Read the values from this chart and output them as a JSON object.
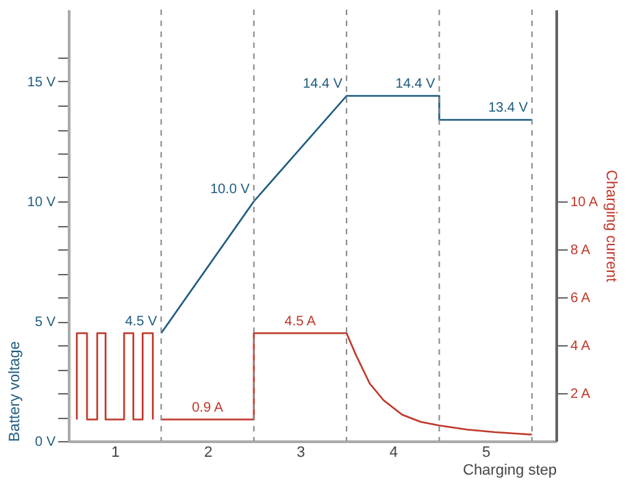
{
  "chart_data": {
    "type": "line",
    "xlabel": "Charging step",
    "ylabel": "Battery voltage",
    "y2label": "Charging current",
    "xlim": [
      0.5,
      5.76
    ],
    "xticks": [
      1,
      2,
      3,
      4,
      5
    ],
    "ylim": [
      0,
      18
    ],
    "yticks": [
      {
        "value": 0,
        "label": "0 V"
      },
      {
        "value": 1,
        "label": null
      },
      {
        "value": 2,
        "label": null
      },
      {
        "value": 3,
        "label": null
      },
      {
        "value": 4,
        "label": null
      },
      {
        "value": 5,
        "label": "5 V"
      },
      {
        "value": 6,
        "label": null
      },
      {
        "value": 7,
        "label": null
      },
      {
        "value": 8,
        "label": null
      },
      {
        "value": 9,
        "label": null
      },
      {
        "value": 10,
        "label": "10 V"
      },
      {
        "value": 11,
        "label": null
      },
      {
        "value": 12,
        "label": null
      },
      {
        "value": 13,
        "label": null
      },
      {
        "value": 14,
        "label": null
      },
      {
        "value": 15,
        "label": "15 V"
      },
      {
        "value": 16,
        "label": null
      }
    ],
    "y2lim": [
      0,
      18
    ],
    "y2ticks": [
      {
        "value": 2,
        "label": "2 A"
      },
      {
        "value": 4,
        "label": "4 A"
      },
      {
        "value": 6,
        "label": "6 A"
      },
      {
        "value": 8,
        "label": "8 A"
      },
      {
        "value": 10,
        "label": "10 A"
      }
    ],
    "grid": false,
    "series": [
      {
        "color": "#1f5c80",
        "x": [
          1.5,
          2.5,
          3.5,
          4.5,
          4.5,
          5.5
        ],
        "values": [
          4.5,
          10.0,
          14.4,
          14.4,
          13.4,
          13.4
        ],
        "value_labels": [
          "4.5 V",
          "10.0 V",
          "14.4 V",
          "14.4 V",
          null,
          "13.4 V"
        ]
      },
      {
        "color": "#c0392b",
        "axis": "y2",
        "x": [
          0.59,
          0.59,
          0.7,
          0.7,
          0.81,
          0.81,
          0.9,
          0.9,
          1.1,
          1.1,
          1.2,
          1.2,
          1.3,
          1.3,
          1.41,
          1.41,
          1.45,
          1.5,
          2.0,
          2.5,
          2.5,
          3.0,
          3.5,
          3.6,
          3.75,
          3.9,
          4.1,
          4.3,
          4.5,
          4.8,
          5.1,
          5.5
        ],
        "values": [
          0.9,
          4.5,
          4.5,
          0.9,
          0.9,
          4.5,
          4.5,
          0.9,
          0.9,
          4.5,
          4.5,
          0.9,
          0.9,
          4.5,
          4.5,
          0.9,
          null,
          0.9,
          0.9,
          0.9,
          4.5,
          4.5,
          4.5,
          3.6,
          2.4,
          1.7,
          1.1,
          0.8,
          0.65,
          0.48,
          0.37,
          0.27
        ],
        "value_labels": [
          null,
          null,
          null,
          null,
          null,
          null,
          null,
          null,
          null,
          null,
          null,
          null,
          null,
          null,
          null,
          null,
          null,
          null,
          "0.9 A",
          null,
          null,
          "4.5 A",
          null,
          null,
          null,
          null,
          null,
          null,
          null,
          null,
          null,
          null
        ]
      }
    ],
    "ref_lines": [
      {
        "axis": "x",
        "value": 1.5,
        "color": "#888888",
        "line_style": "dashed"
      },
      {
        "axis": "x",
        "value": 2.5,
        "color": "#888888",
        "line_style": "dashed"
      },
      {
        "axis": "x",
        "value": 3.5,
        "color": "#888888",
        "line_style": "dashed"
      },
      {
        "axis": "x",
        "value": 4.5,
        "color": "#888888",
        "line_style": "dashed"
      },
      {
        "axis": "x",
        "value": 5.5,
        "color": "#888888",
        "line_style": "dashed"
      }
    ]
  }
}
